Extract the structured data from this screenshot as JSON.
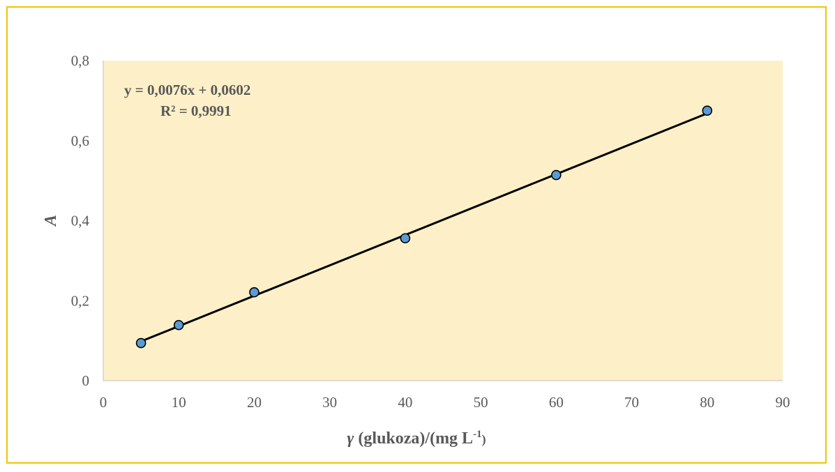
{
  "chart_data": {
    "type": "scatter",
    "series": [
      {
        "x": [
          5,
          10,
          20,
          40,
          60,
          80
        ],
        "y": [
          0.094,
          0.139,
          0.221,
          0.356,
          0.514,
          0.675
        ],
        "marker_color": "#5b9bd5"
      }
    ],
    "trendline": {
      "slope": 0.0076,
      "intercept": 0.0602,
      "x_range": [
        5,
        80
      ],
      "color": "#000000",
      "equation_label": "y = 0,0076x + 0,0602",
      "r2_label": "R² = 0,9991"
    },
    "xlabel": {
      "symbol": "γ",
      "text": " (glukoza)/(mg L",
      "superscript": "-1",
      "close": ")"
    },
    "ylabel": "A",
    "xlim": [
      0,
      90
    ],
    "ylim": [
      0,
      0.8
    ],
    "xticks": [
      0,
      10,
      20,
      30,
      40,
      50,
      60,
      70,
      80,
      90
    ],
    "xtick_labels": [
      "0",
      "10",
      "20",
      "30",
      "40",
      "50",
      "60",
      "70",
      "80",
      "90"
    ],
    "yticks": [
      0,
      0.2,
      0.4,
      0.6,
      0.8
    ],
    "ytick_labels": [
      "0",
      "0,2",
      "0,4",
      "0,6",
      "0,8"
    ],
    "grid": false,
    "plot_background": "#fdf0c8",
    "frame_color": "#f2c500"
  }
}
